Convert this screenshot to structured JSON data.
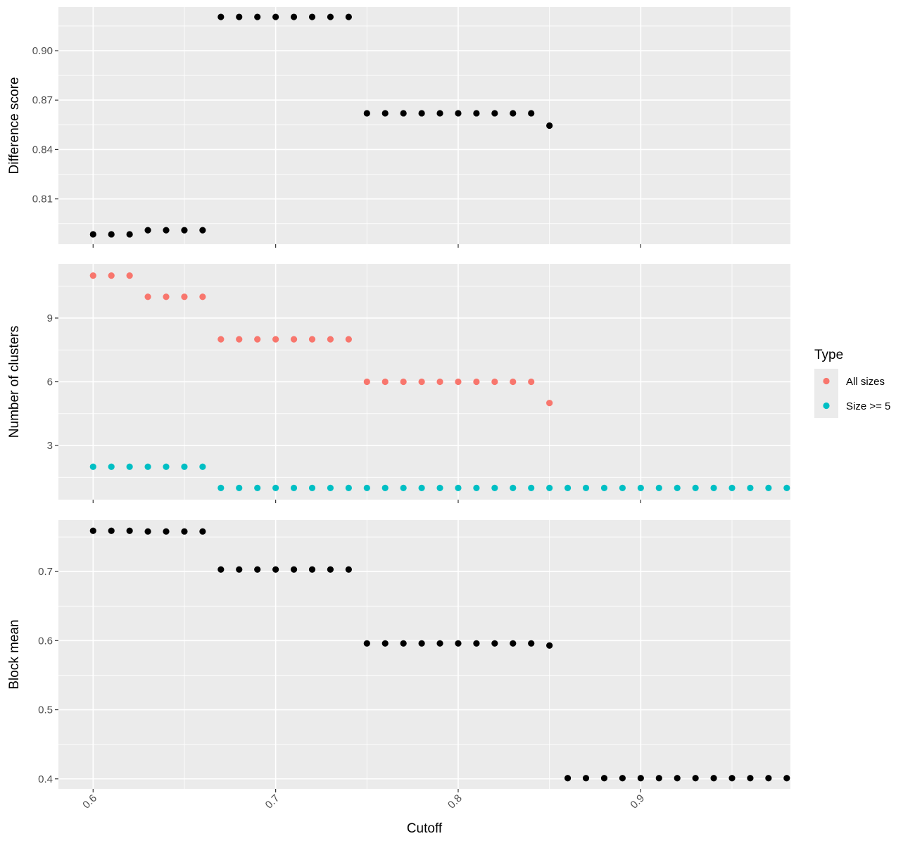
{
  "chart_data": {
    "type": "scatter",
    "xlabel": "Cutoff",
    "x_ticks": [
      "0.6",
      "0.7",
      "0.8",
      "0.9"
    ],
    "x_tick_values": [
      0.6,
      0.7,
      0.8,
      0.9
    ],
    "xlim": [
      0.581,
      0.982
    ],
    "legend": {
      "title": "Type",
      "position": "right",
      "entries": [
        {
          "label": "All sizes",
          "color": "#F8766D"
        },
        {
          "label": "Size >= 5",
          "color": "#00BFC4"
        }
      ]
    },
    "grid": true,
    "panels": [
      {
        "ylabel": "Difference score",
        "ylim": [
          0.7825,
          0.9265
        ],
        "y_ticks": [
          "0.81",
          "0.84",
          "0.87",
          "0.90"
        ],
        "y_tick_values": [
          0.81,
          0.84,
          0.87,
          0.9
        ],
        "series": [
          {
            "color": "#000000",
            "x": [
              0.6,
              0.61,
              0.62,
              0.63,
              0.64,
              0.65,
              0.66,
              0.67,
              0.68,
              0.69,
              0.7,
              0.71,
              0.72,
              0.73,
              0.74,
              0.75,
              0.76,
              0.77,
              0.78,
              0.79,
              0.8,
              0.81,
              0.82,
              0.83,
              0.84,
              0.85
            ],
            "y": [
              0.7885,
              0.7885,
              0.7885,
              0.791,
              0.791,
              0.791,
              0.791,
              0.9205,
              0.9205,
              0.9205,
              0.9205,
              0.9205,
              0.9205,
              0.9205,
              0.9205,
              0.862,
              0.862,
              0.862,
              0.862,
              0.862,
              0.862,
              0.862,
              0.862,
              0.862,
              0.862,
              0.8545
            ]
          }
        ]
      },
      {
        "ylabel": "Number of clusters",
        "ylim": [
          0.45,
          11.55
        ],
        "y_ticks": [
          "3",
          "6",
          "9"
        ],
        "y_tick_values": [
          3,
          6,
          9
        ],
        "series": [
          {
            "name": "All sizes",
            "color": "#F8766D",
            "x": [
              0.6,
              0.61,
              0.62,
              0.63,
              0.64,
              0.65,
              0.66,
              0.67,
              0.68,
              0.69,
              0.7,
              0.71,
              0.72,
              0.73,
              0.74,
              0.75,
              0.76,
              0.77,
              0.78,
              0.79,
              0.8,
              0.81,
              0.82,
              0.83,
              0.84,
              0.85
            ],
            "y": [
              11,
              11,
              11,
              10,
              10,
              10,
              10,
              8,
              8,
              8,
              8,
              8,
              8,
              8,
              8,
              6,
              6,
              6,
              6,
              6,
              6,
              6,
              6,
              6,
              6,
              5
            ]
          },
          {
            "name": "Size >= 5",
            "color": "#00BFC4",
            "x": [
              0.6,
              0.61,
              0.62,
              0.63,
              0.64,
              0.65,
              0.66,
              0.67,
              0.68,
              0.69,
              0.7,
              0.71,
              0.72,
              0.73,
              0.74,
              0.75,
              0.76,
              0.77,
              0.78,
              0.79,
              0.8,
              0.81,
              0.82,
              0.83,
              0.84,
              0.85,
              0.86,
              0.87,
              0.88,
              0.89,
              0.9,
              0.91,
              0.92,
              0.93,
              0.94,
              0.95,
              0.96,
              0.97,
              0.98
            ],
            "y": [
              2,
              2,
              2,
              2,
              2,
              2,
              2,
              1,
              1,
              1,
              1,
              1,
              1,
              1,
              1,
              1,
              1,
              1,
              1,
              1,
              1,
              1,
              1,
              1,
              1,
              1,
              1,
              1,
              1,
              1,
              1,
              1,
              1,
              1,
              1,
              1,
              1,
              1,
              1
            ]
          }
        ]
      },
      {
        "ylabel": "Block mean",
        "ylim": [
          0.3855,
          0.7745
        ],
        "y_ticks": [
          "0.4",
          "0.5",
          "0.6",
          "0.7"
        ],
        "y_tick_values": [
          0.4,
          0.5,
          0.6,
          0.7
        ],
        "series": [
          {
            "color": "#000000",
            "x": [
              0.6,
              0.61,
              0.62,
              0.63,
              0.64,
              0.65,
              0.66,
              0.67,
              0.68,
              0.69,
              0.7,
              0.71,
              0.72,
              0.73,
              0.74,
              0.75,
              0.76,
              0.77,
              0.78,
              0.79,
              0.8,
              0.81,
              0.82,
              0.83,
              0.84,
              0.85,
              0.86,
              0.87,
              0.88,
              0.89,
              0.9,
              0.91,
              0.92,
              0.93,
              0.94,
              0.95,
              0.96,
              0.97,
              0.98
            ],
            "y": [
              0.759,
              0.759,
              0.759,
              0.758,
              0.758,
              0.758,
              0.758,
              0.703,
              0.703,
              0.703,
              0.703,
              0.703,
              0.703,
              0.703,
              0.703,
              0.596,
              0.596,
              0.596,
              0.596,
              0.596,
              0.596,
              0.596,
              0.596,
              0.596,
              0.596,
              0.593,
              0.401,
              0.401,
              0.401,
              0.401,
              0.401,
              0.401,
              0.401,
              0.401,
              0.401,
              0.401,
              0.401,
              0.401,
              0.401
            ]
          }
        ]
      }
    ]
  }
}
